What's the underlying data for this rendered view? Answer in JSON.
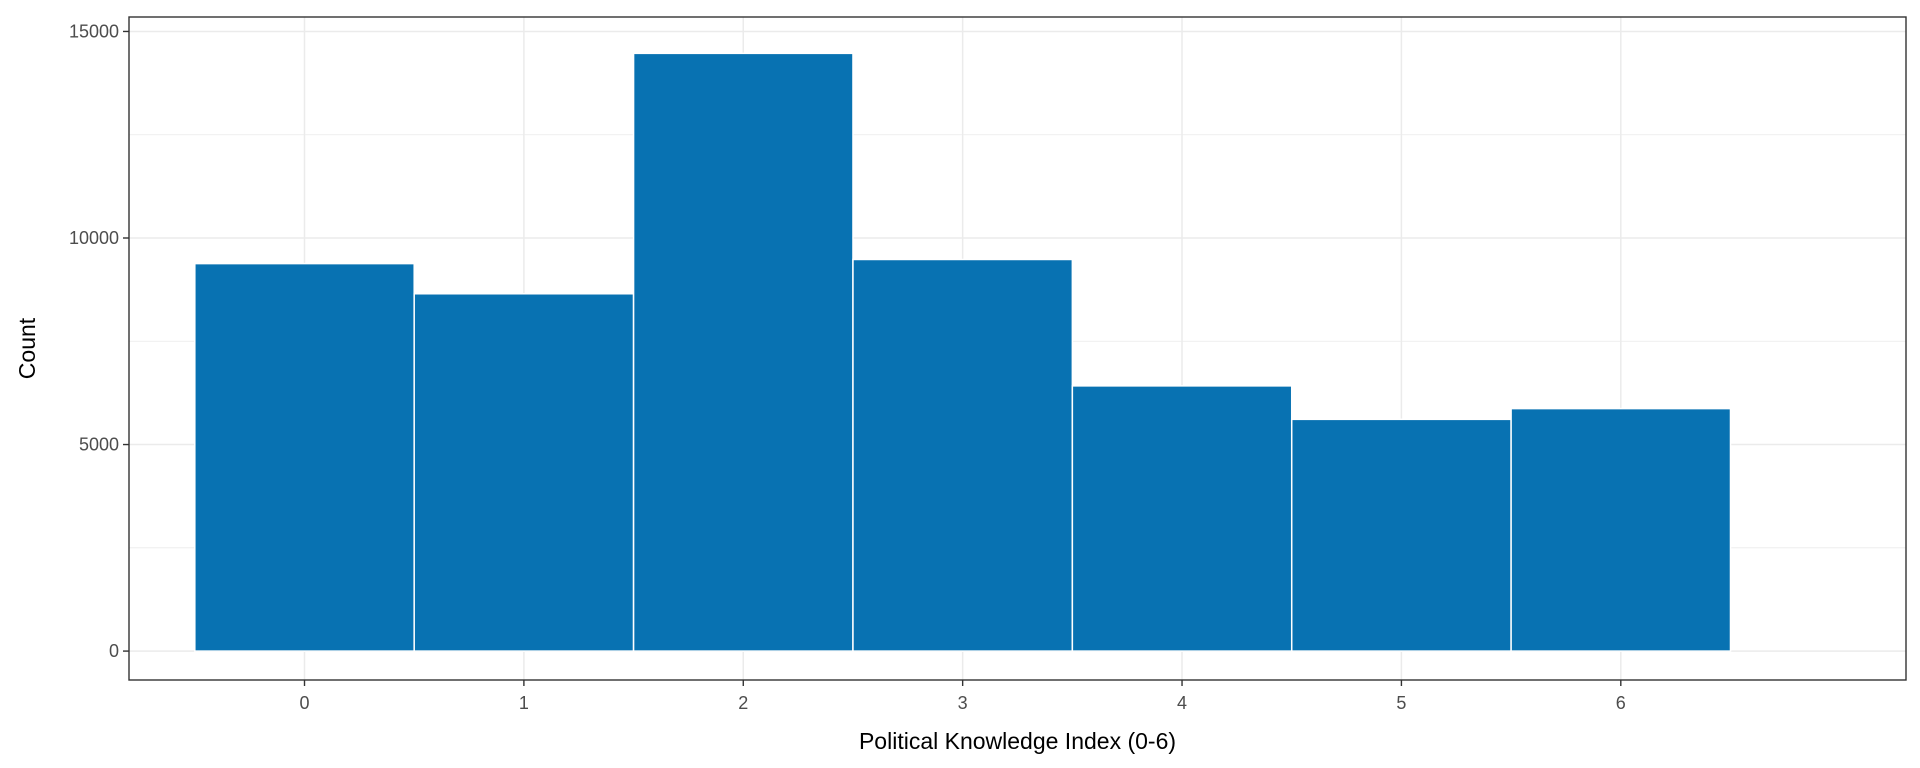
{
  "chart_data": {
    "type": "bar",
    "title": "",
    "xlabel": "Political Knowledge Index (0-6)",
    "ylabel": "Count",
    "categories": [
      "0",
      "1",
      "2",
      "3",
      "4",
      "5",
      "6"
    ],
    "values": [
      9380,
      8650,
      14470,
      9480,
      6420,
      5610,
      5870
    ],
    "xlim": [
      -0.8,
      7.3
    ],
    "ylim": [
      -700,
      15350
    ],
    "x_ticks": [
      "0",
      "1",
      "2",
      "3",
      "4",
      "5",
      "6"
    ],
    "y_ticks": [
      "0",
      "5000",
      "10000",
      "15000"
    ],
    "grid": true,
    "legend": "none",
    "colors": {
      "bar": "#0872b2",
      "bar_edge": "#ffffff",
      "grid": "#ebebeb",
      "panel_border": "#333333",
      "tick_label": "#4d4d4d",
      "axis_title": "#000000"
    }
  }
}
